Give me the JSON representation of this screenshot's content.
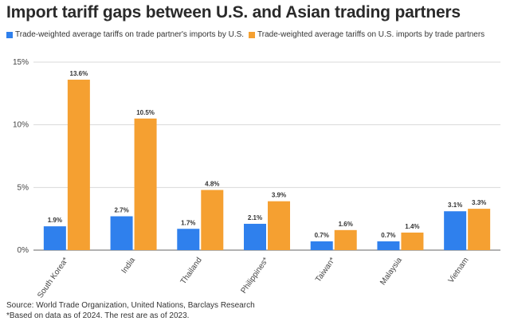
{
  "title": "Import tariff gaps between U.S. and Asian trading partners",
  "legend": [
    {
      "label": "Trade-weighted average tariffs on trade partner's imports by U.S.",
      "color": "#2f80ed"
    },
    {
      "label": "Trade-weighted average tariffs on U.S. imports by trade partners",
      "color": "#f5a031"
    }
  ],
  "footer": {
    "source": "Source: World Trade Organization, United Nations, Barclays Research",
    "note": "*Based on data as of 2024. The rest are as of 2023."
  },
  "chart_data": {
    "type": "bar",
    "categories": [
      "South Korea*",
      "India",
      "Thailand",
      "Philippines*",
      "Taiwan*",
      "Malaysia",
      "Vietnam"
    ],
    "series": [
      {
        "name": "Trade-weighted average tariffs on trade partner's imports by U.S.",
        "color": "#2f80ed",
        "values": [
          1.9,
          2.7,
          1.7,
          2.1,
          0.7,
          0.7,
          3.1
        ],
        "labels": [
          "1.9%",
          "2.7%",
          "1.7%",
          "2.1%",
          "0.7%",
          "0.7%",
          "3.1%"
        ]
      },
      {
        "name": "Trade-weighted average tariffs on U.S. imports by trade partners",
        "color": "#f5a031",
        "values": [
          13.6,
          10.5,
          4.8,
          3.9,
          1.6,
          1.4,
          3.3
        ],
        "labels": [
          "13.6%",
          "10.5%",
          "4.8%",
          "3.9%",
          "1.6%",
          "1.4%",
          "3.3%"
        ]
      }
    ],
    "yticks": [
      0,
      5,
      10,
      15
    ],
    "ytick_labels": [
      "0%",
      "5%",
      "10%",
      "15%"
    ],
    "ylim": [
      0,
      15
    ],
    "grid": true
  }
}
